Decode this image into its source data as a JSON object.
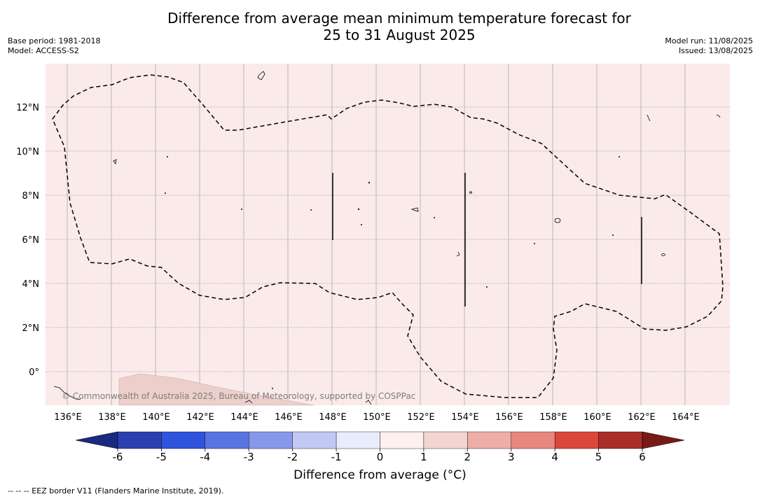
{
  "title_line1": "Difference from average mean minimum temperature forecast for",
  "title_line2": "25 to 31 August 2025",
  "base_period": "Base period: 1981-2018",
  "model": "Model: ACCESS-S2",
  "model_run": "Model run: 11/08/2025",
  "issued": "Issued: 13/08/2025",
  "copyright": "© Commonwealth of Australia 2025, Bureau of Meteorology, supported by COSPPac",
  "lat_labels": [
    "12°N",
    "10°N",
    "8°N",
    "6°N",
    "4°N",
    "2°N",
    "0°"
  ],
  "lon_labels": [
    "136°E",
    "138°E",
    "140°E",
    "142°E",
    "144°E",
    "146°E",
    "148°E",
    "150°E",
    "152°E",
    "154°E",
    "156°E",
    "158°E",
    "160°E",
    "162°E",
    "164°E"
  ],
  "colorbar": {
    "title": "Difference from average (°C)",
    "ticks": [
      "-6",
      "-5",
      "-4",
      "-3",
      "-2",
      "-1",
      "0",
      "1",
      "2",
      "3",
      "4",
      "5",
      "6"
    ],
    "colors": [
      "#1a2a80",
      "#2b3fae",
      "#2f53dd",
      "#5a73e3",
      "#8798e8",
      "#c0c8f3",
      "#e9ecfb",
      "#fdf0ee",
      "#f2d5d1",
      "#eeaea7",
      "#e8867d",
      "#dc473c",
      "#ab2d27",
      "#7a1a18"
    ]
  },
  "map": {
    "background_anomaly_color": "#fbeaea",
    "land_anomaly_color": "#eccfcb"
  },
  "footnote": "-- -- -- EEZ border V11 (Flanders Marine Institute, 2019)."
}
